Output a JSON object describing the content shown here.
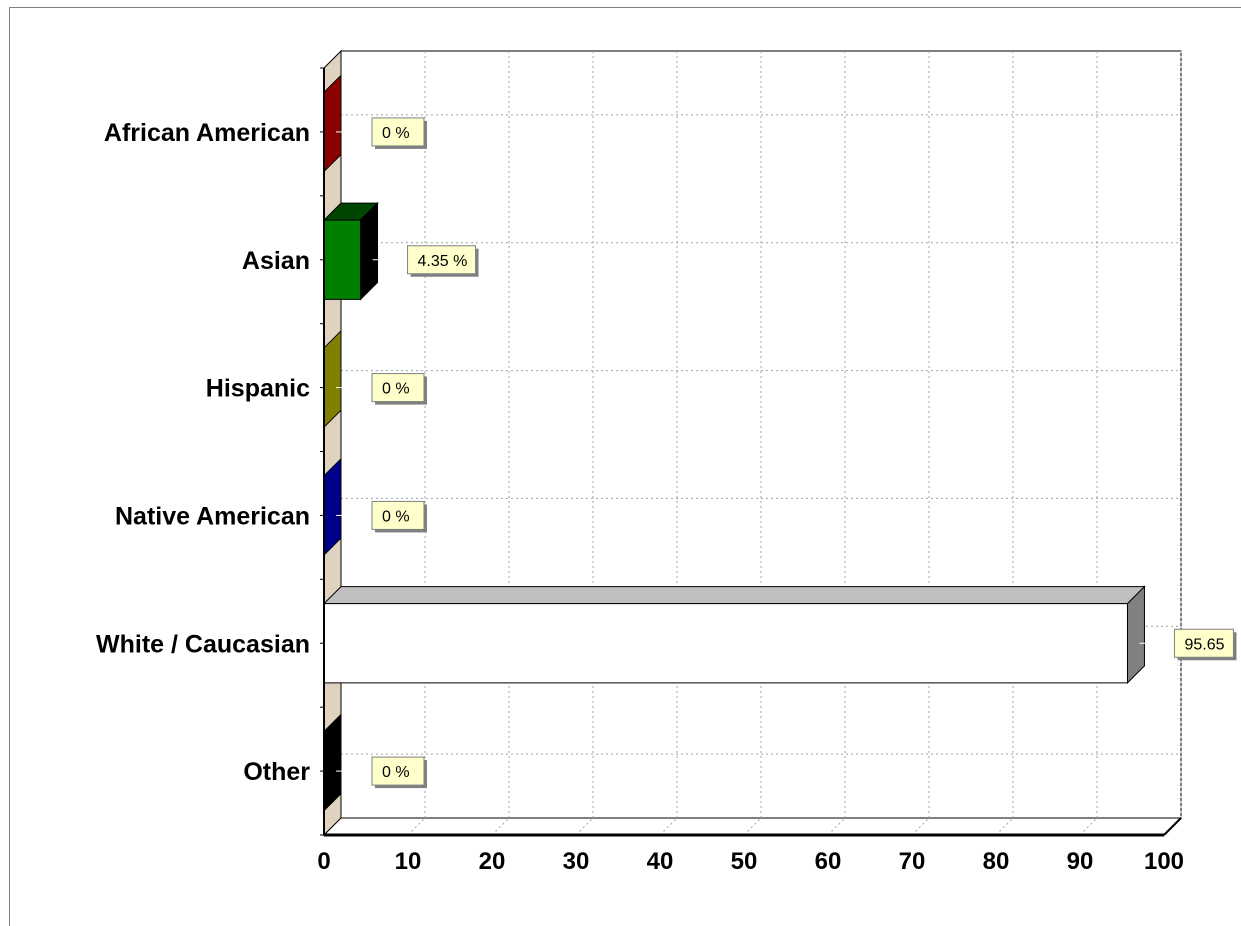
{
  "chart_data": {
    "type": "bar",
    "orientation": "horizontal",
    "style": "3d",
    "categories": [
      "African American",
      "Asian",
      "Hispanic",
      "Native American",
      "White / Caucasian",
      "Other"
    ],
    "values": [
      0,
      4.35,
      0,
      0,
      95.65,
      0
    ],
    "data_labels": [
      "0 %",
      "4.35 %",
      "0 %",
      "0 %",
      "95.65",
      "0 %"
    ],
    "xlim": [
      0,
      100
    ],
    "xticks": [
      0,
      10,
      20,
      30,
      40,
      50,
      60,
      70,
      80,
      90,
      100
    ],
    "grid": true,
    "legend": "none",
    "colors": {
      "African American": "#8b0000",
      "Asian": "#008000",
      "Hispanic": "#808000",
      "Native American": "#00008b",
      "White / Caucasian": "#ffffff",
      "Other": "#000000"
    },
    "title": ""
  }
}
